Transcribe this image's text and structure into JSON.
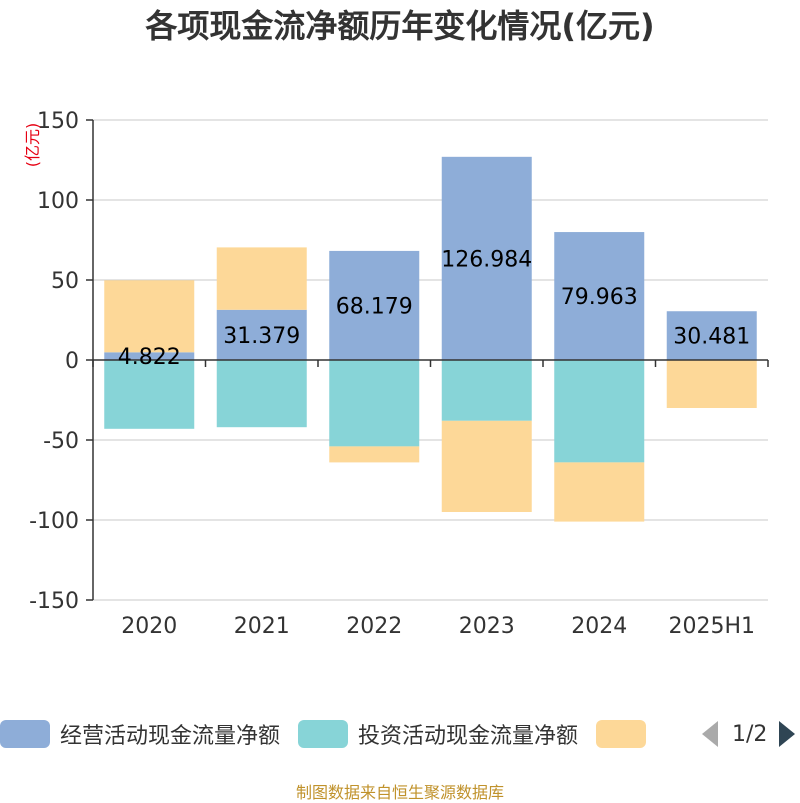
{
  "title": "各项现金流净额历年变化情况(亿元)",
  "source": "制图数据来自恒生聚源数据库",
  "colors": {
    "operating": "#8eadd8",
    "investing": "#87d4d7",
    "financing": "#fdd898",
    "unit_label": "#e60012"
  },
  "legend": {
    "items": [
      "经营活动现金流量净额",
      "投资活动现金流量净额",
      ""
    ],
    "page_text": "1/2"
  },
  "chart_data": {
    "type": "bar",
    "stacked": true,
    "unit_label": "(亿元)",
    "categories": [
      "2020",
      "2021",
      "2022",
      "2023",
      "2024",
      "2025H1"
    ],
    "ylim": [
      -150,
      150
    ],
    "yticks": [
      150,
      100,
      50,
      0,
      -50,
      -100,
      -150
    ],
    "grid": true,
    "legend_position": "bottom",
    "series": [
      {
        "name": "经营活动现金流量净额",
        "color_key": "operating",
        "values": [
          4.822,
          31.379,
          68.179,
          126.984,
          79.963,
          30.481
        ],
        "labels": [
          "4.822",
          "31.379",
          "68.179",
          "126.984",
          "79.963",
          "30.481"
        ]
      },
      {
        "name": "投资活动现金流量净额",
        "color_key": "investing",
        "values": [
          -43,
          -42,
          -54,
          -38,
          -64,
          0
        ]
      },
      {
        "color_key": "financing",
        "values": [
          45,
          39,
          -10,
          -57,
          -37,
          -30
        ]
      }
    ]
  }
}
